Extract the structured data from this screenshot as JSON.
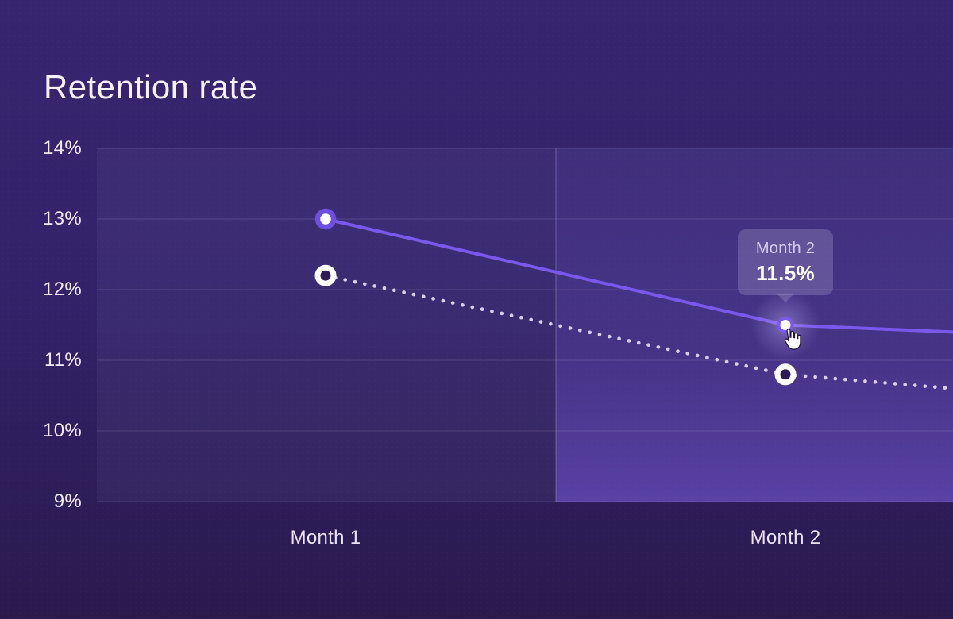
{
  "chart_data": {
    "type": "line",
    "title": "Retention rate",
    "categories": [
      "Month 1",
      "Month 2"
    ],
    "series": [
      {
        "name": "solid-line-series",
        "style": "solid",
        "color": "#7a58ec",
        "values": [
          13.0,
          11.5
        ],
        "trail_value": 11.4
      },
      {
        "name": "dotted-line-series",
        "style": "dotted",
        "color": "#d6cfee",
        "values": [
          12.2,
          10.8
        ],
        "trail_value": 10.6
      }
    ],
    "ylim": [
      9,
      14
    ],
    "y_ticks": [
      "14%",
      "13%",
      "12%",
      "11%",
      "10%",
      "9%"
    ],
    "x_ticks": [
      "Month 1",
      "Month 2"
    ],
    "grid": "horizontal",
    "legend": "none",
    "hover_band": {
      "category": "Month 2"
    },
    "tooltip": {
      "title": "Month 2",
      "value": "11.5%",
      "attached_to": {
        "series": "solid-line-series",
        "category": "Month 2"
      }
    }
  },
  "colors": {
    "background_top": "#37256f",
    "background_bottom": "#2a1a4e",
    "accent_line": "#7a58ec",
    "dotted_line": "#d6cfee",
    "grid_line": "rgba(222,214,250,0.16)",
    "hover_band_bottom": "#5636a8",
    "tooltip_bg": "rgba(226,219,249,0.20)",
    "text": "#f5f1fd"
  }
}
